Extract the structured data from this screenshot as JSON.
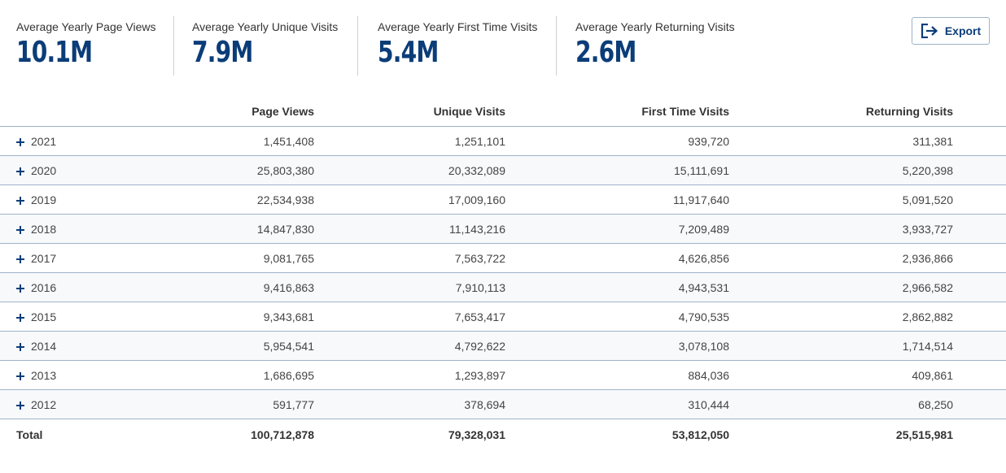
{
  "summary": [
    {
      "label": "Average Yearly Page Views",
      "value": "10.1M"
    },
    {
      "label": "Average Yearly Unique Visits",
      "value": "7.9M"
    },
    {
      "label": "Average Yearly First Time Visits",
      "value": "5.4M"
    },
    {
      "label": "Average Yearly Returning Visits",
      "value": "2.6M"
    }
  ],
  "export": {
    "label": "Export",
    "icon": "sign-out-icon"
  },
  "accent_color": "#0b3d78",
  "table": {
    "headers": [
      "",
      "Page Views",
      "Unique Visits",
      "First Time Visits",
      "Returning Visits"
    ],
    "rows": [
      {
        "year": "2021",
        "page_views": "1,451,408",
        "unique": "1,251,101",
        "first": "939,720",
        "returning": "311,381"
      },
      {
        "year": "2020",
        "page_views": "25,803,380",
        "unique": "20,332,089",
        "first": "15,111,691",
        "returning": "5,220,398"
      },
      {
        "year": "2019",
        "page_views": "22,534,938",
        "unique": "17,009,160",
        "first": "11,917,640",
        "returning": "5,091,520"
      },
      {
        "year": "2018",
        "page_views": "14,847,830",
        "unique": "11,143,216",
        "first": "7,209,489",
        "returning": "3,933,727"
      },
      {
        "year": "2017",
        "page_views": "9,081,765",
        "unique": "7,563,722",
        "first": "4,626,856",
        "returning": "2,936,866"
      },
      {
        "year": "2016",
        "page_views": "9,416,863",
        "unique": "7,910,113",
        "first": "4,943,531",
        "returning": "2,966,582"
      },
      {
        "year": "2015",
        "page_views": "9,343,681",
        "unique": "7,653,417",
        "first": "4,790,535",
        "returning": "2,862,882"
      },
      {
        "year": "2014",
        "page_views": "5,954,541",
        "unique": "4,792,622",
        "first": "3,078,108",
        "returning": "1,714,514"
      },
      {
        "year": "2013",
        "page_views": "1,686,695",
        "unique": "1,293,897",
        "first": "884,036",
        "returning": "409,861"
      },
      {
        "year": "2012",
        "page_views": "591,777",
        "unique": "378,694",
        "first": "310,444",
        "returning": "68,250"
      }
    ],
    "total": {
      "label": "Total",
      "page_views": "100,712,878",
      "unique": "79,328,031",
      "first": "53,812,050",
      "returning": "25,515,981"
    }
  }
}
